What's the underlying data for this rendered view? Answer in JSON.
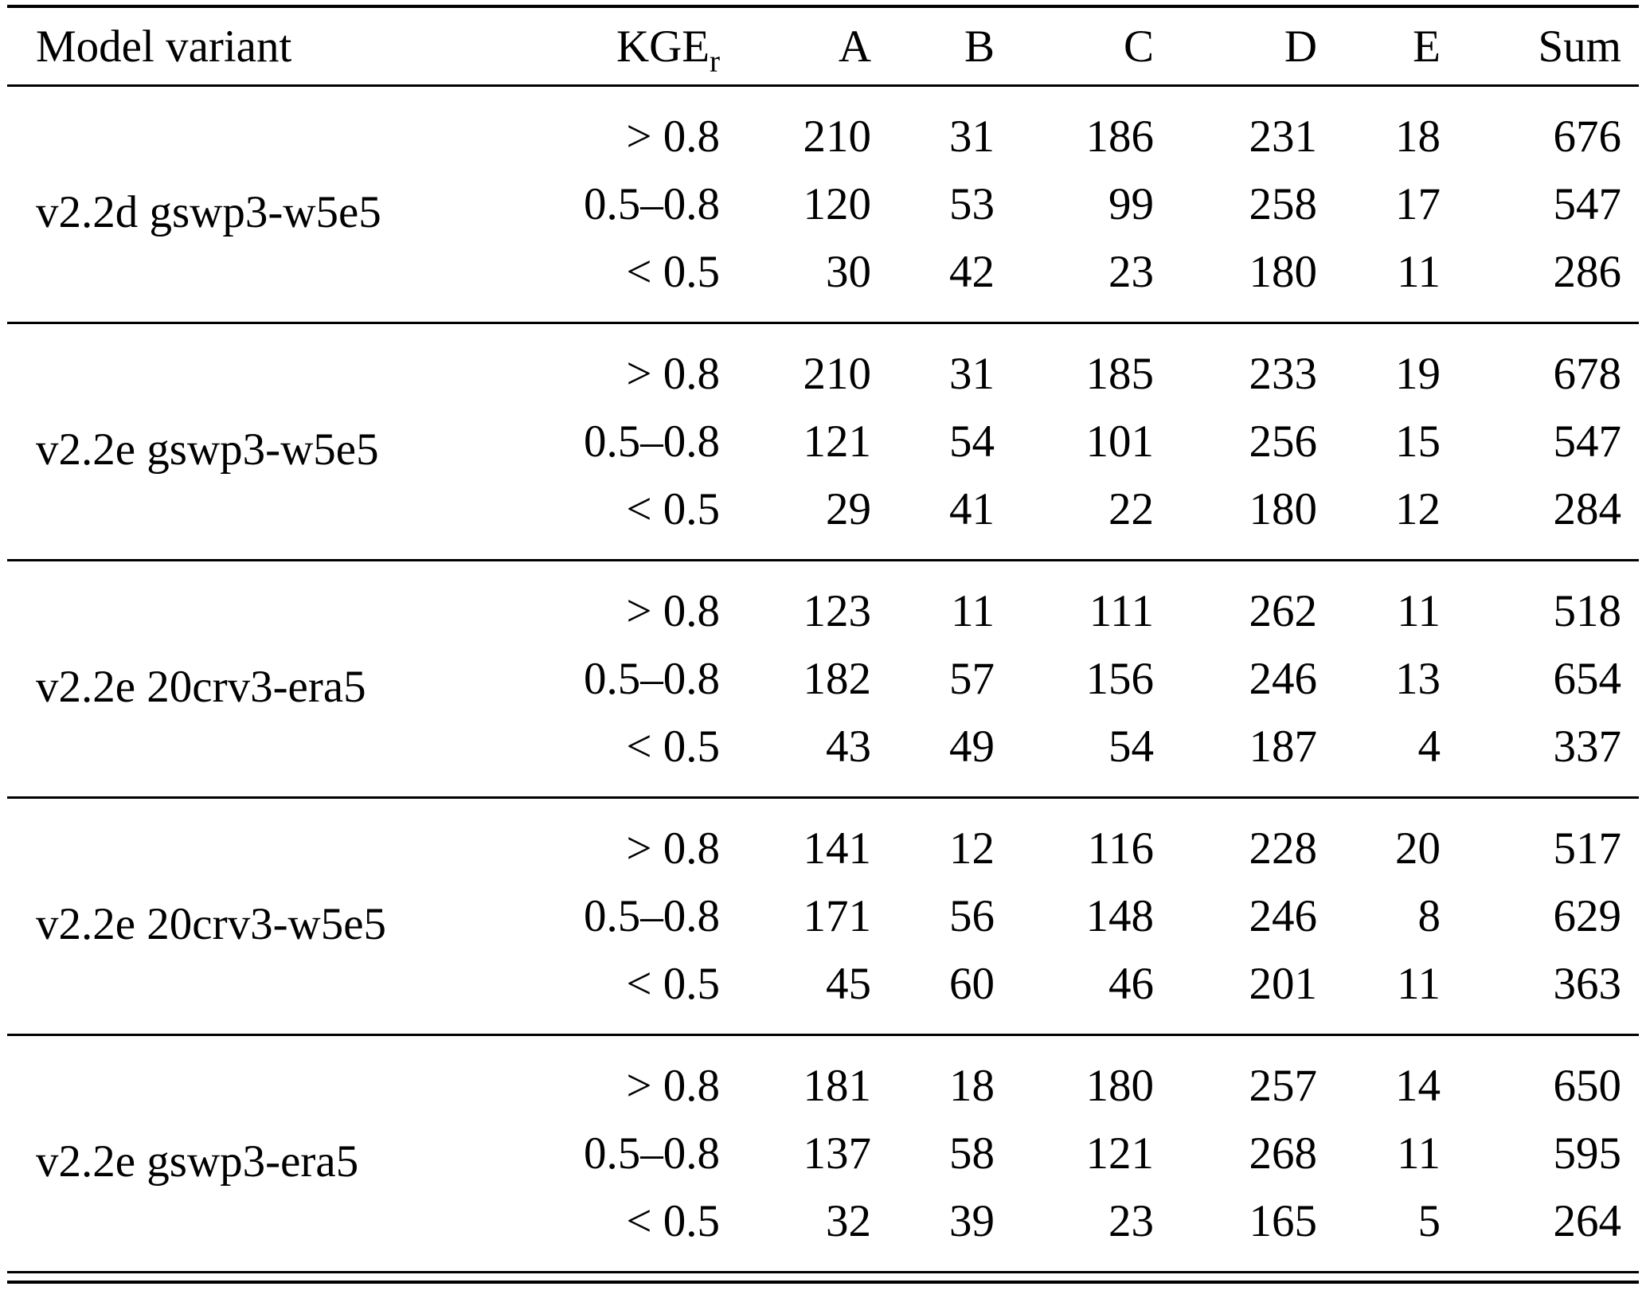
{
  "table": {
    "headers": {
      "model": "Model variant",
      "kge_base": "KGE",
      "kge_sub": "r",
      "cols": [
        "A",
        "B",
        "C",
        "D",
        "E",
        "Sum"
      ]
    },
    "groups": [
      {
        "model": "v2.2d gswp3-w5e5",
        "rows": [
          {
            "kge": "> 0.8",
            "values": [
              210,
              31,
              186,
              231,
              18,
              676
            ]
          },
          {
            "kge": "0.5–0.8",
            "values": [
              120,
              53,
              99,
              258,
              17,
              547
            ]
          },
          {
            "kge": "< 0.5",
            "values": [
              30,
              42,
              23,
              180,
              11,
              286
            ]
          }
        ]
      },
      {
        "model": "v2.2e gswp3-w5e5",
        "rows": [
          {
            "kge": "> 0.8",
            "values": [
              210,
              31,
              185,
              233,
              19,
              678
            ]
          },
          {
            "kge": "0.5–0.8",
            "values": [
              121,
              54,
              101,
              256,
              15,
              547
            ]
          },
          {
            "kge": "< 0.5",
            "values": [
              29,
              41,
              22,
              180,
              12,
              284
            ]
          }
        ]
      },
      {
        "model": "v2.2e 20crv3-era5",
        "rows": [
          {
            "kge": "> 0.8",
            "values": [
              123,
              11,
              111,
              262,
              11,
              518
            ]
          },
          {
            "kge": "0.5–0.8",
            "values": [
              182,
              57,
              156,
              246,
              13,
              654
            ]
          },
          {
            "kge": "< 0.5",
            "values": [
              43,
              49,
              54,
              187,
              4,
              337
            ]
          }
        ]
      },
      {
        "model": "v2.2e 20crv3-w5e5",
        "rows": [
          {
            "kge": "> 0.8",
            "values": [
              141,
              12,
              116,
              228,
              20,
              517
            ]
          },
          {
            "kge": "0.5–0.8",
            "values": [
              171,
              56,
              148,
              246,
              8,
              629
            ]
          },
          {
            "kge": "< 0.5",
            "values": [
              45,
              60,
              46,
              201,
              11,
              363
            ]
          }
        ]
      },
      {
        "model": "v2.2e gswp3-era5",
        "rows": [
          {
            "kge": "> 0.8",
            "values": [
              181,
              18,
              180,
              257,
              14,
              650
            ]
          },
          {
            "kge": "0.5–0.8",
            "values": [
              137,
              58,
              121,
              268,
              11,
              595
            ]
          },
          {
            "kge": "< 0.5",
            "values": [
              32,
              39,
              23,
              165,
              5,
              264
            ]
          }
        ]
      }
    ]
  },
  "colors": {
    "text": "#000000",
    "background": "#ffffff",
    "rule": "#000000"
  }
}
